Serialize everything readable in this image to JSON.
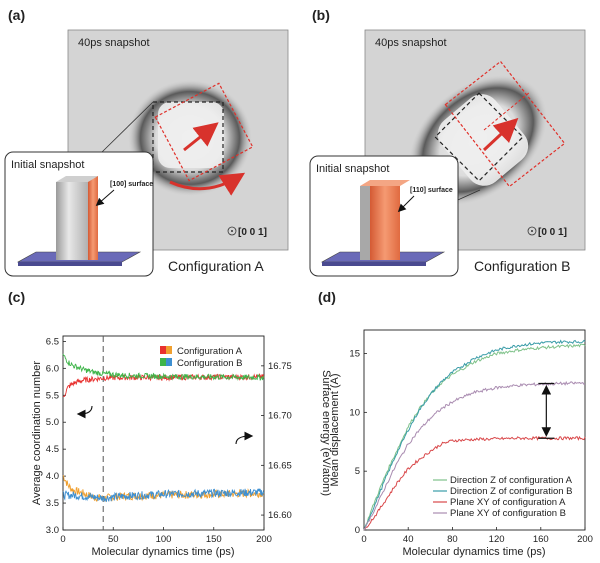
{
  "panels": {
    "a": {
      "label": "(a)",
      "snapshot_title": "40ps snapshot",
      "inset_title": "Initial snapshot",
      "surface_label": "[100] surface",
      "direction_label": "[0 0 1]",
      "caption": "Configuration A"
    },
    "b": {
      "label": "(b)",
      "snapshot_title": "40ps snapshot",
      "inset_title": "Initial snapshot",
      "surface_label": "[110] surface",
      "direction_label": "[0 0 1]",
      "caption": "Configuration B"
    },
    "c": {
      "label": "(c)"
    },
    "d": {
      "label": "(d)"
    }
  },
  "colors": {
    "config_a_left": "#e8312f",
    "config_a_right": "#f0a030",
    "config_b_left": "#3fb54a",
    "config_b_right": "#3d8fd1",
    "d_z_a": "#7fc28a",
    "d_z_b": "#3a9ca8",
    "d_xy_a": "#d9484a",
    "d_xy_b": "#a98bb0",
    "orange_slab": "#f07a50",
    "base_plate": "#6a6ab8"
  },
  "chart_data": [
    {
      "type": "line",
      "panel": "c",
      "xlabel": "Molecular dynamics time (ps)",
      "ylabel": "Average coordination number",
      "y2label": "Surface energy (eV/atom)",
      "xlim": [
        0,
        200
      ],
      "ylim": [
        3.0,
        6.6
      ],
      "y2lim": [
        16.585,
        16.78
      ],
      "x_ticks": [
        0,
        50,
        100,
        150,
        200
      ],
      "y_ticks": [
        "3.0",
        "3.5",
        "4.0",
        "4.5",
        "5.0",
        "5.5",
        "6.0",
        "6.5"
      ],
      "y2_ticks": [
        "16.60",
        "16.65",
        "16.70",
        "16.75"
      ],
      "vline_x": 40,
      "legend": [
        "Configuration A",
        "Configuration B"
      ],
      "legend_position": "top-right",
      "series": [
        {
          "name": "Configuration A",
          "axis": "left",
          "x": [
            0,
            5,
            10,
            20,
            30,
            40,
            60,
            100,
            150,
            200
          ],
          "y": [
            5.45,
            5.65,
            5.72,
            5.78,
            5.8,
            5.82,
            5.83,
            5.83,
            5.84,
            5.84
          ]
        },
        {
          "name": "Configuration A",
          "axis": "right",
          "x": [
            0,
            5,
            10,
            20,
            30,
            40,
            60,
            100,
            150,
            200
          ],
          "y": [
            16.64,
            16.63,
            16.625,
            16.622,
            16.618,
            16.617,
            16.619,
            16.62,
            16.621,
            16.622
          ]
        },
        {
          "name": "Configuration B",
          "axis": "left",
          "x": [
            0,
            5,
            10,
            20,
            30,
            40,
            60,
            100,
            150,
            200
          ],
          "y": [
            6.25,
            6.12,
            6.05,
            5.98,
            5.93,
            5.9,
            5.87,
            5.85,
            5.84,
            5.83
          ]
        },
        {
          "name": "Configuration B",
          "axis": "right",
          "x": [
            0,
            10,
            20,
            40,
            60,
            100,
            150,
            200
          ],
          "y": [
            16.62,
            16.62,
            16.619,
            16.617,
            16.619,
            16.621,
            16.622,
            16.623
          ]
        }
      ]
    },
    {
      "type": "line",
      "panel": "d",
      "xlabel": "Molecular dynamics time (ps)",
      "ylabel": "Mean displacement (A)",
      "xlim": [
        0,
        200
      ],
      "ylim": [
        0,
        17
      ],
      "x_ticks": [
        0,
        40,
        80,
        120,
        160,
        200
      ],
      "y_ticks": [
        0,
        5,
        10,
        15
      ],
      "legend_position": "bottom-right",
      "series": [
        {
          "name": "Direction Z of configuration A",
          "x": [
            0,
            10,
            20,
            30,
            40,
            50,
            60,
            70,
            80,
            100,
            120,
            140,
            160,
            180,
            200
          ],
          "y": [
            0,
            2.5,
            4.8,
            6.8,
            8.8,
            10.3,
            11.5,
            12.5,
            13.2,
            14.3,
            15.0,
            15.3,
            15.5,
            15.6,
            15.7
          ]
        },
        {
          "name": "Direction Z of configuration B",
          "x": [
            0,
            10,
            20,
            30,
            40,
            50,
            60,
            70,
            80,
            100,
            120,
            140,
            160,
            180,
            200
          ],
          "y": [
            0,
            2.2,
            4.5,
            6.6,
            8.5,
            10.2,
            11.5,
            12.6,
            13.4,
            14.6,
            15.3,
            15.7,
            15.9,
            16.0,
            16.0
          ]
        },
        {
          "name": "Plane XY of configuration A",
          "x": [
            0,
            10,
            20,
            30,
            40,
            50,
            60,
            70,
            80,
            100,
            120,
            140,
            160,
            180,
            200
          ],
          "y": [
            0,
            1.2,
            2.6,
            4.0,
            5.2,
            6.0,
            6.7,
            7.3,
            7.6,
            7.7,
            7.75,
            7.8,
            7.8,
            7.8,
            7.8
          ]
        },
        {
          "name": "Plane XY of configuration B",
          "x": [
            0,
            10,
            20,
            30,
            40,
            50,
            60,
            70,
            80,
            100,
            120,
            140,
            160,
            180,
            200
          ],
          "y": [
            0,
            1.8,
            3.8,
            5.7,
            7.3,
            8.5,
            9.5,
            10.3,
            10.9,
            11.7,
            12.1,
            12.3,
            12.4,
            12.45,
            12.5
          ]
        }
      ]
    }
  ]
}
